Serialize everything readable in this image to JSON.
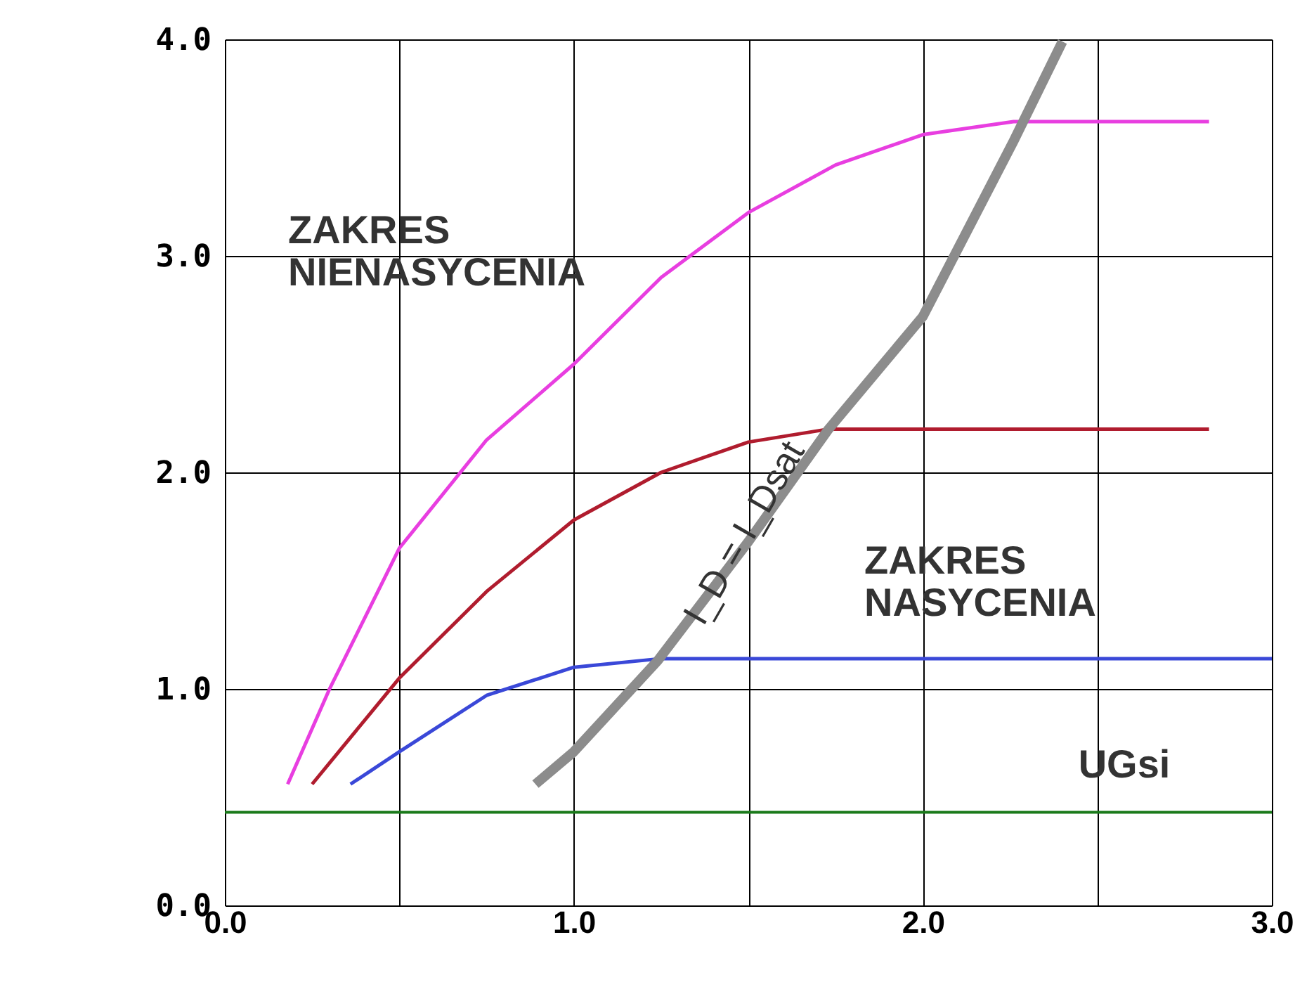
{
  "chart_data": {
    "type": "line",
    "xlim": [
      0,
      3.0
    ],
    "ylim": [
      0,
      4.0
    ],
    "xticks": [
      {
        "value": 0,
        "label": "0.0"
      },
      {
        "value": 0.5,
        "label": null
      },
      {
        "value": 1,
        "label": "1.0"
      },
      {
        "value": 1.5,
        "label": null
      },
      {
        "value": 2,
        "label": "2.0"
      },
      {
        "value": 2.5,
        "label": null
      },
      {
        "value": 3,
        "label": "3.0"
      }
    ],
    "yticks": [
      {
        "value": 0,
        "label": "0.0"
      },
      {
        "value": 1,
        "label": "1.0"
      },
      {
        "value": 2,
        "label": "2.0"
      },
      {
        "value": 3,
        "label": "3.0"
      },
      {
        "value": 4,
        "label": "4.0"
      }
    ],
    "grid": true,
    "legend": false,
    "marker": "none",
    "line_style": "solid",
    "series": [
      {
        "color": "#e83ee0",
        "x": [
          0.18,
          0.3,
          0.5,
          0.75,
          1.0,
          1.25,
          1.5,
          1.75,
          2.0,
          2.26,
          2.82
        ],
        "values": [
          0.56,
          1.0,
          1.65,
          2.15,
          2.5,
          2.9,
          3.2,
          3.42,
          3.56,
          3.62,
          3.62
        ]
      },
      {
        "color": "#b01c2e",
        "x": [
          0.25,
          0.5,
          0.75,
          1.0,
          1.25,
          1.5,
          1.73,
          2.82
        ],
        "values": [
          0.56,
          1.05,
          1.45,
          1.78,
          2.0,
          2.14,
          2.2,
          2.2
        ]
      },
      {
        "color": "#3a48d8",
        "x": [
          0.36,
          0.5,
          0.75,
          1.0,
          1.25,
          3.0
        ],
        "values": [
          0.56,
          0.71,
          0.97,
          1.1,
          1.14,
          1.14
        ]
      },
      {
        "name": "I_D = I_Dsat",
        "color": "#8c8c8c",
        "x": [
          0.89,
          1.0,
          1.24,
          1.5,
          1.73,
          2.0,
          2.26,
          2.4
        ],
        "values": [
          0.56,
          0.71,
          1.13,
          1.68,
          2.2,
          2.72,
          3.53,
          3.99
        ]
      }
    ],
    "ref_lines": [
      {
        "axis": "y",
        "value": 0.43,
        "color": "#1a7a1a"
      }
    ],
    "annotations": [
      "ZAKRES\nNIENASYCENIA",
      "ZAKRES\nNASYCENIA",
      "UGsi"
    ]
  }
}
